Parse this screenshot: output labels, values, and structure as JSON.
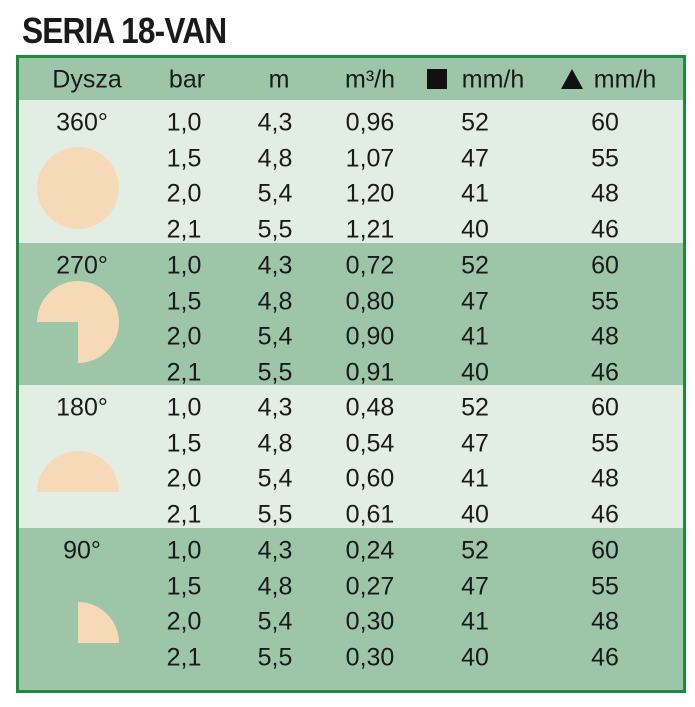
{
  "header": {
    "title": "SERIA 18-VAN"
  },
  "table": {
    "columns": [
      "Dysza",
      "bar",
      "m",
      "m³/h",
      "mm/h",
      "mm/h"
    ],
    "groups": [
      {
        "label": "360°",
        "rows": [
          [
            "1,0",
            "4,3",
            "0,96",
            "52",
            "60"
          ],
          [
            "1,5",
            "4,8",
            "1,07",
            "47",
            "55"
          ],
          [
            "2,0",
            "5,4",
            "1,20",
            "41",
            "48"
          ],
          [
            "2,1",
            "5,5",
            "1,21",
            "40",
            "46"
          ]
        ]
      },
      {
        "label": "270°",
        "rows": [
          [
            "1,0",
            "4,3",
            "0,72",
            "52",
            "60"
          ],
          [
            "1,5",
            "4,8",
            "0,80",
            "47",
            "55"
          ],
          [
            "2,0",
            "5,4",
            "0,90",
            "41",
            "48"
          ],
          [
            "2,1",
            "5,5",
            "0,91",
            "40",
            "46"
          ]
        ]
      },
      {
        "label": "180°",
        "rows": [
          [
            "1,0",
            "4,3",
            "0,48",
            "52",
            "60"
          ],
          [
            "1,5",
            "4,8",
            "0,54",
            "47",
            "55"
          ],
          [
            "2,0",
            "5,4",
            "0,60",
            "41",
            "48"
          ],
          [
            "2,1",
            "5,5",
            "0,61",
            "40",
            "46"
          ]
        ]
      },
      {
        "label": "90°",
        "rows": [
          [
            "1,0",
            "4,3",
            "0,24",
            "52",
            "60"
          ],
          [
            "1,5",
            "4,8",
            "0,27",
            "47",
            "55"
          ],
          [
            "2,0",
            "5,4",
            "0,30",
            "41",
            "48"
          ],
          [
            "2,1",
            "5,5",
            "0,30",
            "40",
            "46"
          ]
        ]
      }
    ]
  }
}
